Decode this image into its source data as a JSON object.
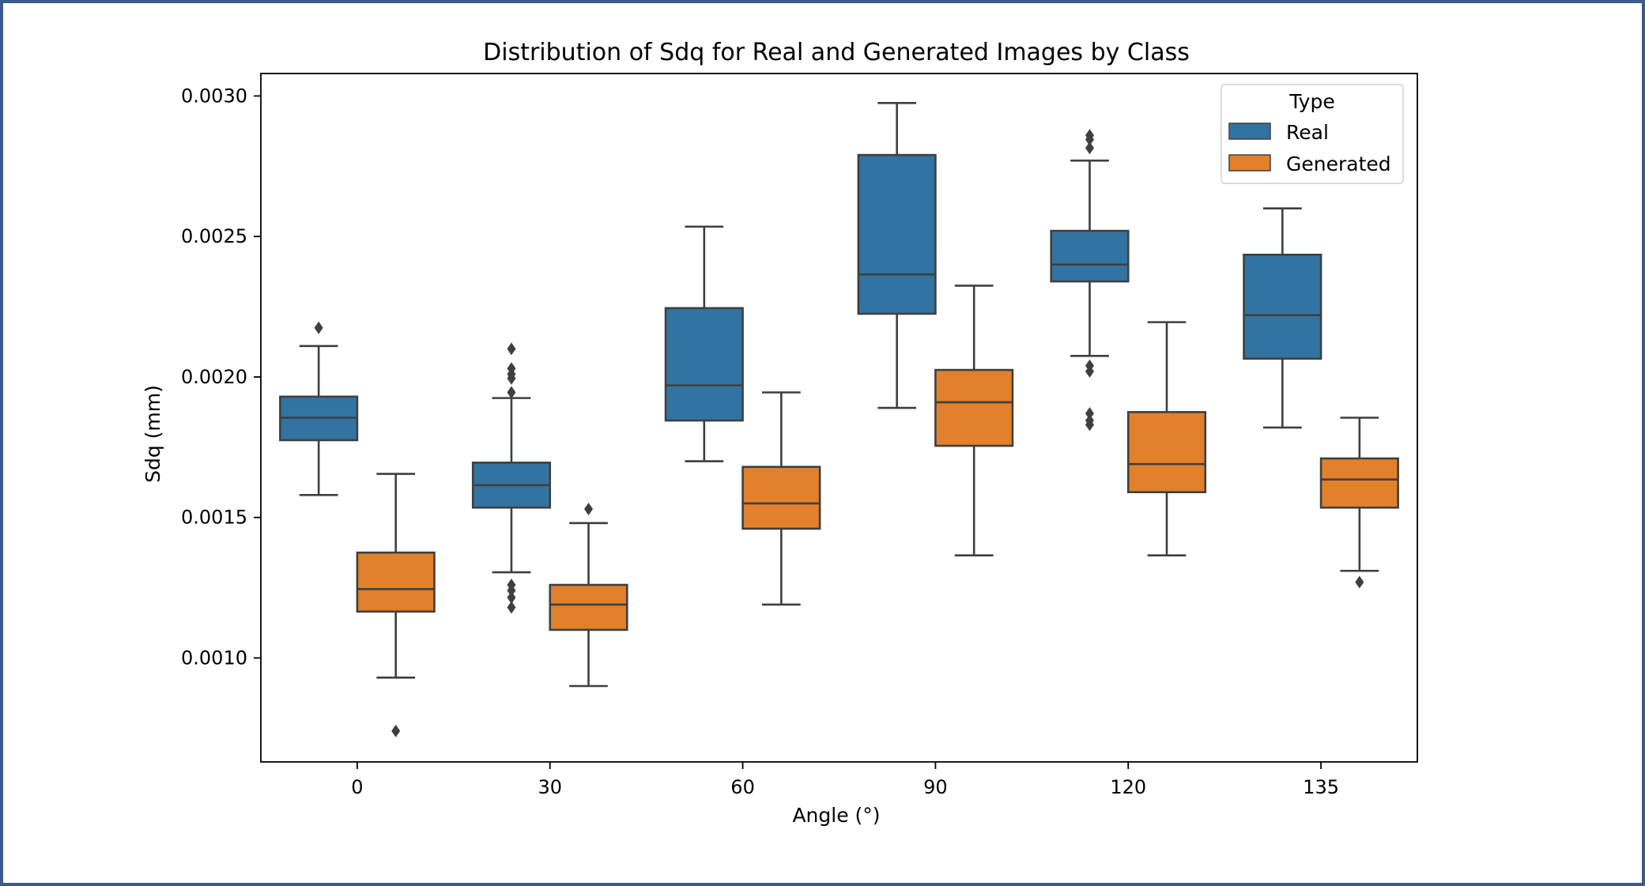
{
  "chart_data": {
    "type": "box",
    "title": "Distribution of Sdq for Real and Generated Images by Class",
    "xlabel": "Angle (°)",
    "ylabel": "Sdq (mm)",
    "ylim": [
      0.00063,
      0.00308
    ],
    "yticks": [
      0.001,
      0.0015,
      0.002,
      0.0025,
      0.003
    ],
    "ytick_labels": [
      "0.0010",
      "0.0015",
      "0.0020",
      "0.0025",
      "0.0030"
    ],
    "categories": [
      "0",
      "30",
      "60",
      "90",
      "120",
      "135"
    ],
    "legend": {
      "title": "Type",
      "position": "top-right",
      "entries": [
        "Real",
        "Generated"
      ]
    },
    "series": [
      {
        "name": "Real",
        "color": "#3274a1",
        "boxes": [
          {
            "whisker_low": 0.00158,
            "q1": 0.001775,
            "median": 0.001855,
            "q3": 0.00193,
            "whisker_high": 0.00211,
            "outliers": [
              0.002175
            ]
          },
          {
            "whisker_low": 0.001305,
            "q1": 0.001535,
            "median": 0.001615,
            "q3": 0.001695,
            "whisker_high": 0.001925,
            "outliers": [
              0.0021,
              0.00203,
              0.00201,
              0.001995,
              0.001945,
              0.00126,
              0.00124,
              0.001215,
              0.00118
            ]
          },
          {
            "whisker_low": 0.0017,
            "q1": 0.001845,
            "median": 0.00197,
            "q3": 0.002245,
            "whisker_high": 0.002535,
            "outliers": []
          },
          {
            "whisker_low": 0.00189,
            "q1": 0.002225,
            "median": 0.002365,
            "q3": 0.00279,
            "whisker_high": 0.002975,
            "outliers": []
          },
          {
            "whisker_low": 0.002075,
            "q1": 0.00234,
            "median": 0.0024,
            "q3": 0.00252,
            "whisker_high": 0.00277,
            "outliers": [
              0.00286,
              0.002845,
              0.002815,
              0.00204,
              0.00202,
              0.00187,
              0.001845,
              0.00183
            ]
          },
          {
            "whisker_low": 0.00182,
            "q1": 0.002065,
            "median": 0.00222,
            "q3": 0.002435,
            "whisker_high": 0.0026,
            "outliers": []
          }
        ]
      },
      {
        "name": "Generated",
        "color": "#e1812c",
        "boxes": [
          {
            "whisker_low": 0.00093,
            "q1": 0.001165,
            "median": 0.001245,
            "q3": 0.001375,
            "whisker_high": 0.001655,
            "outliers": [
              0.00074
            ]
          },
          {
            "whisker_low": 0.0009,
            "q1": 0.0011,
            "median": 0.00119,
            "q3": 0.00126,
            "whisker_high": 0.00148,
            "outliers": [
              0.00153
            ]
          },
          {
            "whisker_low": 0.00119,
            "q1": 0.00146,
            "median": 0.00155,
            "q3": 0.00168,
            "whisker_high": 0.001945,
            "outliers": []
          },
          {
            "whisker_low": 0.001365,
            "q1": 0.001755,
            "median": 0.00191,
            "q3": 0.002025,
            "whisker_high": 0.002325,
            "outliers": []
          },
          {
            "whisker_low": 0.001365,
            "q1": 0.00159,
            "median": 0.00169,
            "q3": 0.001875,
            "whisker_high": 0.002195,
            "outliers": []
          },
          {
            "whisker_low": 0.00131,
            "q1": 0.001535,
            "median": 0.001635,
            "q3": 0.00171,
            "whisker_high": 0.001855,
            "outliers": [
              0.00127
            ]
          }
        ]
      }
    ]
  }
}
